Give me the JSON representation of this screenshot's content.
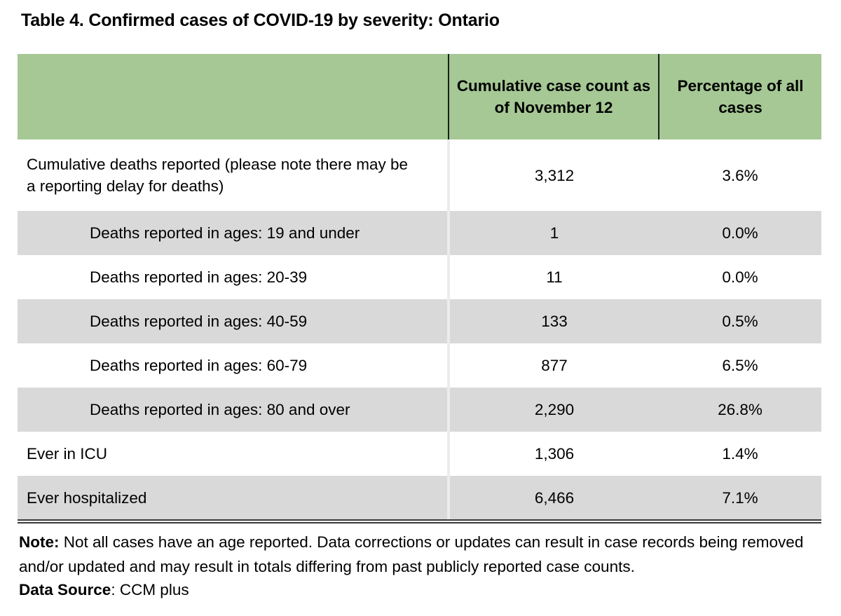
{
  "title": "Table 4. Confirmed cases of COVID-19 by severity: Ontario",
  "table": {
    "columns": {
      "count": "Cumulative case count as of November 12",
      "percentage": "Percentage of all cases"
    },
    "rows": [
      {
        "label": "Cumulative deaths reported (please note there may be a reporting delay for deaths)",
        "count": "3,312",
        "pct": "3.6%"
      },
      {
        "label": "Deaths reported in ages: 19 and under",
        "count": "1",
        "pct": "0.0%"
      },
      {
        "label": "Deaths reported in ages: 20-39",
        "count": "11",
        "pct": "0.0%"
      },
      {
        "label": "Deaths reported in ages: 40-59",
        "count": "133",
        "pct": "0.5%"
      },
      {
        "label": "Deaths reported in ages: 60-79",
        "count": "877",
        "pct": "6.5%"
      },
      {
        "label": "Deaths reported in ages: 80 and over",
        "count": "2,290",
        "pct": "26.8%"
      },
      {
        "label": "Ever in ICU",
        "count": "1,306",
        "pct": "1.4%"
      },
      {
        "label": "Ever hospitalized",
        "count": "6,466",
        "pct": "7.1%"
      }
    ]
  },
  "note": {
    "label": "Note:",
    "text": " Not all cases have an age reported. Data corrections or updates can result in case records being removed and/or updated and may result in totals differing from past publicly reported case counts."
  },
  "source": {
    "label": "Data Source",
    "text": ": CCM plus"
  },
  "colors": {
    "header_green": "#a5c894",
    "row_gray": "#d9d9d9",
    "divider_dark": "#17211a"
  },
  "chart_data": {
    "type": "table",
    "title": "Table 4. Confirmed cases of COVID-19 by severity: Ontario",
    "columns": [
      "",
      "Cumulative case count as of November 12",
      "Percentage of all cases"
    ],
    "rows": [
      [
        "Cumulative deaths reported (please note there may be a reporting delay for deaths)",
        3312,
        "3.6%"
      ],
      [
        "Deaths reported in ages: 19 and under",
        1,
        "0.0%"
      ],
      [
        "Deaths reported in ages: 20-39",
        11,
        "0.0%"
      ],
      [
        "Deaths reported in ages: 40-59",
        133,
        "0.5%"
      ],
      [
        "Deaths reported in ages: 60-79",
        877,
        "6.5%"
      ],
      [
        "Deaths reported in ages: 80 and over",
        2290,
        "26.8%"
      ],
      [
        "Ever in ICU",
        1306,
        "1.4%"
      ],
      [
        "Ever hospitalized",
        6466,
        "7.1%"
      ]
    ],
    "footnote": "Note: Not all cases have an age reported. Data corrections or updates can result in case records being removed and/or updated and may result in totals differing from past publicly reported case counts.",
    "data_source": "CCM plus"
  }
}
